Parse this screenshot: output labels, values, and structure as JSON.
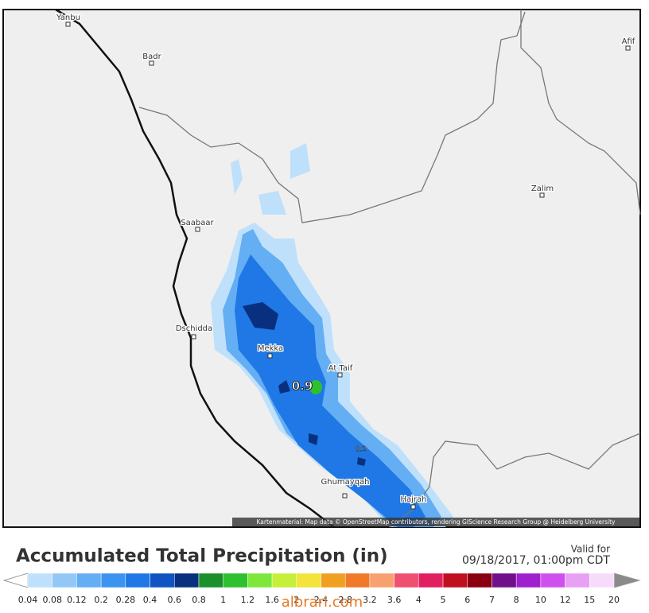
{
  "map": {
    "cities": [
      "Yanbu",
      "Badr",
      "Afif",
      "Zalim",
      "Saabaar",
      "Dschidda",
      "Mekka",
      "At Taif",
      "Ghumayqah",
      "Hajrah"
    ],
    "value_labels": [
      "0.9",
      "0.2"
    ],
    "attribution": "Kartenmaterial: Map data © OpenStreetMap contributors, rendering GIScience Research Group @ Heidelberg University"
  },
  "legend": {
    "title": "Accumulated Total Precipitation (in)",
    "valid_label": "Valid for",
    "valid_time": "09/18/2017, 01:00pm CDT",
    "below_color": "#ffffff",
    "above_color": "#8a8a8a",
    "levels": [
      0.04,
      0.08,
      0.12,
      0.2,
      0.28,
      0.4,
      0.6,
      0.8,
      1,
      1.2,
      1.6,
      2,
      2.4,
      2.8,
      3.2,
      3.6,
      4,
      5,
      6,
      7,
      8,
      10,
      12,
      15,
      20
    ],
    "colors": [
      "#bfe0fb",
      "#93c8f6",
      "#64aef3",
      "#3d94ef",
      "#1f78e6",
      "#0f54c2",
      "#08307f",
      "#1a8f2a",
      "#2fc02f",
      "#7ee83a",
      "#c6ef3a",
      "#f2e43a",
      "#f0a020",
      "#f07a2a",
      "#f8a070",
      "#f05070",
      "#e02060",
      "#c01020",
      "#8a0010",
      "#70108a",
      "#a020d0",
      "#d050ee",
      "#e8a0f4",
      "#f6dcfa"
    ]
  },
  "watermark": "albrari.com"
}
